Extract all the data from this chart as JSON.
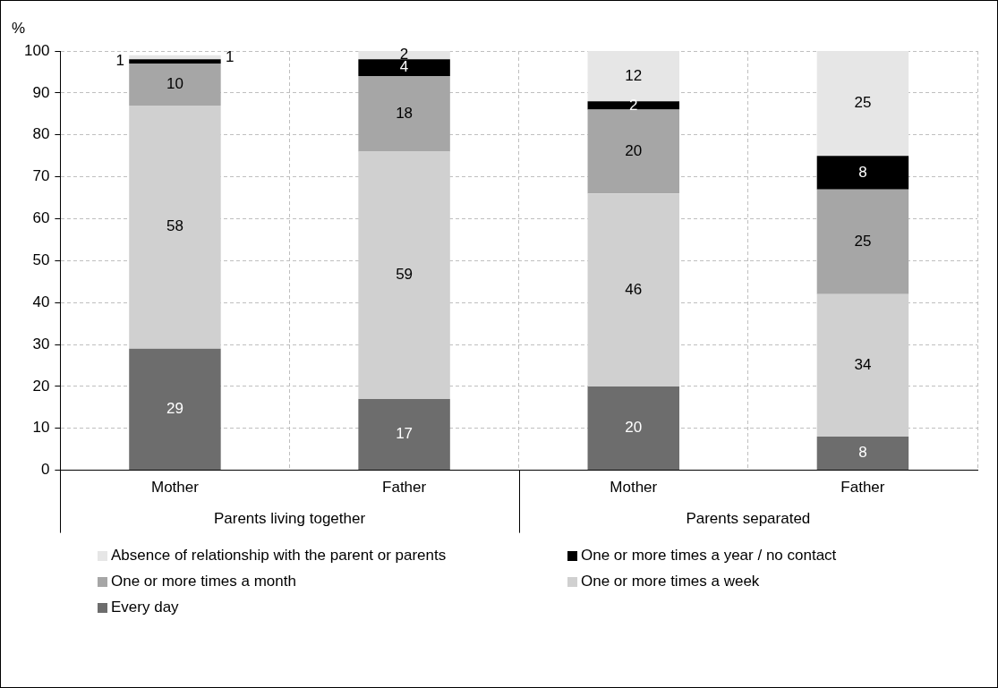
{
  "chart_data": {
    "type": "bar",
    "stacked": true,
    "ylabel": "%",
    "categories": [
      "Mother",
      "Father",
      "Mother",
      "Father"
    ],
    "annotations": [
      "Parents living together",
      "Parents separated"
    ],
    "series": [
      {
        "name": "Every day",
        "color": "#6d6d6d",
        "values": [
          29,
          17,
          20,
          8
        ]
      },
      {
        "name": "One or more times a week",
        "color": "#d0d0d0",
        "values": [
          58,
          59,
          46,
          34
        ]
      },
      {
        "name": "One or more times a month",
        "color": "#a6a6a6",
        "values": [
          10,
          18,
          20,
          25
        ]
      },
      {
        "name": "One or more times a year / no contact",
        "color": "#000000",
        "values": [
          1,
          4,
          2,
          8
        ]
      },
      {
        "name": "Absence of relationship with the parent or parents",
        "color": "#e6e6e6",
        "values": [
          1,
          2,
          12,
          25
        ]
      }
    ],
    "ylim": [
      0,
      100
    ],
    "yticks": [
      0,
      10,
      20,
      30,
      40,
      50,
      60,
      70,
      80,
      90,
      100
    ],
    "grid": true,
    "legend": "bottom",
    "data_labels": true
  }
}
